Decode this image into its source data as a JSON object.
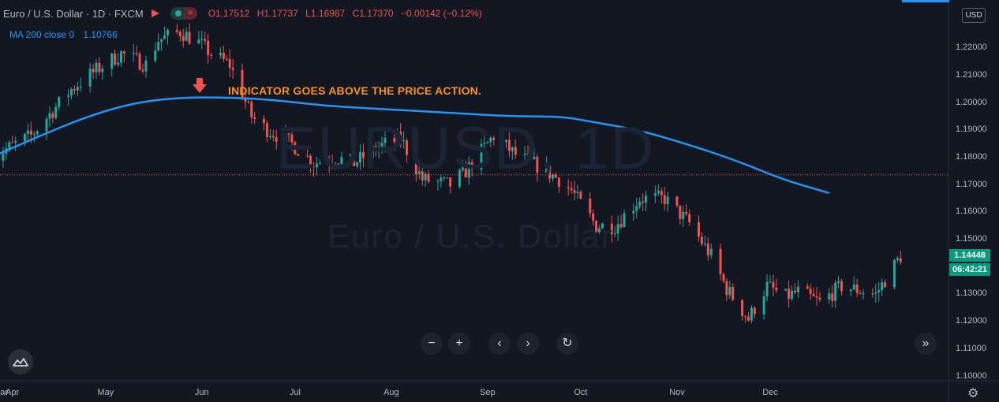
{
  "header": {
    "symbol_title": "Euro / U.S. Dollar · 1D · FXCM",
    "open": "O1.17512",
    "high": "H1.17737",
    "low": "L1.16987",
    "close": "C1.17370",
    "change": "−0.00142 (−0.12%)"
  },
  "ma_legend": {
    "label": "MA 200 close 0",
    "value": "1.10766"
  },
  "annotation": "INDICATOR GOES ABOVE THE PRICE ACTION.",
  "watermark": {
    "symbol": "EURUSD, 1D",
    "name": "Euro / U.S. Dollar"
  },
  "price_scale": {
    "currency": "USD",
    "ticks": [
      "1.22000",
      "1.21000",
      "1.20000",
      "1.19000",
      "1.18000",
      "1.17000",
      "1.16000",
      "1.15000",
      "1.14000",
      "1.13000",
      "1.12000",
      "1.11000",
      "1.10000"
    ],
    "last_price": "1.14448",
    "countdown": "06:42:21"
  },
  "time_scale": {
    "labels": [
      "ar",
      "Apr",
      "May",
      "Jun",
      "Jul",
      "Aug",
      "Sep",
      "Oct",
      "Nov",
      "Dec"
    ]
  },
  "colors": {
    "up": "#26a69a",
    "down": "#ef5350",
    "ma": "#2196f3",
    "annotation": "#f7931a",
    "background": "#131722"
  },
  "icons": {
    "zoom_out": "−",
    "zoom_in": "+",
    "scroll_left": "‹",
    "scroll_right": "›",
    "reset": "↻",
    "go_to_latest": "»",
    "settings": "⚙"
  },
  "chart_data": {
    "type": "candlestick",
    "title": "Euro / U.S. Dollar · 1D · FXCM",
    "ylim": [
      1.095,
      1.235
    ],
    "x_labels": [
      "ar",
      "Apr",
      "May",
      "Jun",
      "Jul",
      "Aug",
      "Sep",
      "Oct",
      "Nov",
      "Dec"
    ],
    "price_path": [
      {
        "date": "2021-03-25",
        "value": 1.18
      },
      {
        "date": "2021-04-07",
        "value": 1.188
      },
      {
        "date": "2021-04-20",
        "value": 1.205
      },
      {
        "date": "2021-04-28",
        "value": 1.212
      },
      {
        "date": "2021-05-06",
        "value": 1.218
      },
      {
        "date": "2021-05-14",
        "value": 1.214
      },
      {
        "date": "2021-05-18",
        "value": 1.223
      },
      {
        "date": "2021-05-25",
        "value": 1.226
      },
      {
        "date": "2021-05-31",
        "value": 1.222
      },
      {
        "date": "2021-06-04",
        "value": 1.218
      },
      {
        "date": "2021-06-10",
        "value": 1.214
      },
      {
        "date": "2021-06-17",
        "value": 1.195
      },
      {
        "date": "2021-06-21",
        "value": 1.191
      },
      {
        "date": "2021-06-30",
        "value": 1.185
      },
      {
        "date": "2021-07-07",
        "value": 1.178
      },
      {
        "date": "2021-07-14",
        "value": 1.18
      },
      {
        "date": "2021-07-20",
        "value": 1.178
      },
      {
        "date": "2021-07-28",
        "value": 1.184
      },
      {
        "date": "2021-08-04",
        "value": 1.187
      },
      {
        "date": "2021-08-11",
        "value": 1.172
      },
      {
        "date": "2021-08-20",
        "value": 1.17
      },
      {
        "date": "2021-08-25",
        "value": 1.175
      },
      {
        "date": "2021-09-03",
        "value": 1.188
      },
      {
        "date": "2021-09-10",
        "value": 1.181
      },
      {
        "date": "2021-09-17",
        "value": 1.177
      },
      {
        "date": "2021-09-24",
        "value": 1.172
      },
      {
        "date": "2021-09-28",
        "value": 1.168
      },
      {
        "date": "2021-10-06",
        "value": 1.155
      },
      {
        "date": "2021-10-12",
        "value": 1.155
      },
      {
        "date": "2021-10-20",
        "value": 1.165
      },
      {
        "date": "2021-10-28",
        "value": 1.165
      },
      {
        "date": "2021-11-05",
        "value": 1.156
      },
      {
        "date": "2021-11-12",
        "value": 1.144
      },
      {
        "date": "2021-11-17",
        "value": 1.132
      },
      {
        "date": "2021-11-24",
        "value": 1.121
      },
      {
        "date": "2021-11-30",
        "value": 1.133
      },
      {
        "date": "2021-12-06",
        "value": 1.129
      },
      {
        "date": "2021-12-10",
        "value": 1.131
      },
      {
        "date": "2021-12-17",
        "value": 1.127
      },
      {
        "date": "2021-12-24",
        "value": 1.133
      },
      {
        "date": "2022-01-04",
        "value": 1.13
      },
      {
        "date": "2022-01-12",
        "value": 1.144
      }
    ],
    "series": [
      {
        "name": "MA 200 close 0",
        "points": [
          {
            "date": "2021-03-25",
            "value": 1.18
          },
          {
            "date": "2021-04-10",
            "value": 1.188
          },
          {
            "date": "2021-04-25",
            "value": 1.195
          },
          {
            "date": "2021-05-10",
            "value": 1.2
          },
          {
            "date": "2021-05-25",
            "value": 1.202
          },
          {
            "date": "2021-06-10",
            "value": 1.202
          },
          {
            "date": "2021-06-25",
            "value": 1.201
          },
          {
            "date": "2021-07-10",
            "value": 1.199
          },
          {
            "date": "2021-07-25",
            "value": 1.198
          },
          {
            "date": "2021-08-10",
            "value": 1.197
          },
          {
            "date": "2021-08-25",
            "value": 1.196
          },
          {
            "date": "2021-09-10",
            "value": 1.195
          },
          {
            "date": "2021-09-25",
            "value": 1.195
          },
          {
            "date": "2021-10-05",
            "value": 1.193
          },
          {
            "date": "2021-10-20",
            "value": 1.19
          },
          {
            "date": "2021-11-04",
            "value": 1.185
          },
          {
            "date": "2021-11-20",
            "value": 1.179
          },
          {
            "date": "2021-12-05",
            "value": 1.172
          },
          {
            "date": "2021-12-20",
            "value": 1.167
          }
        ]
      }
    ]
  }
}
